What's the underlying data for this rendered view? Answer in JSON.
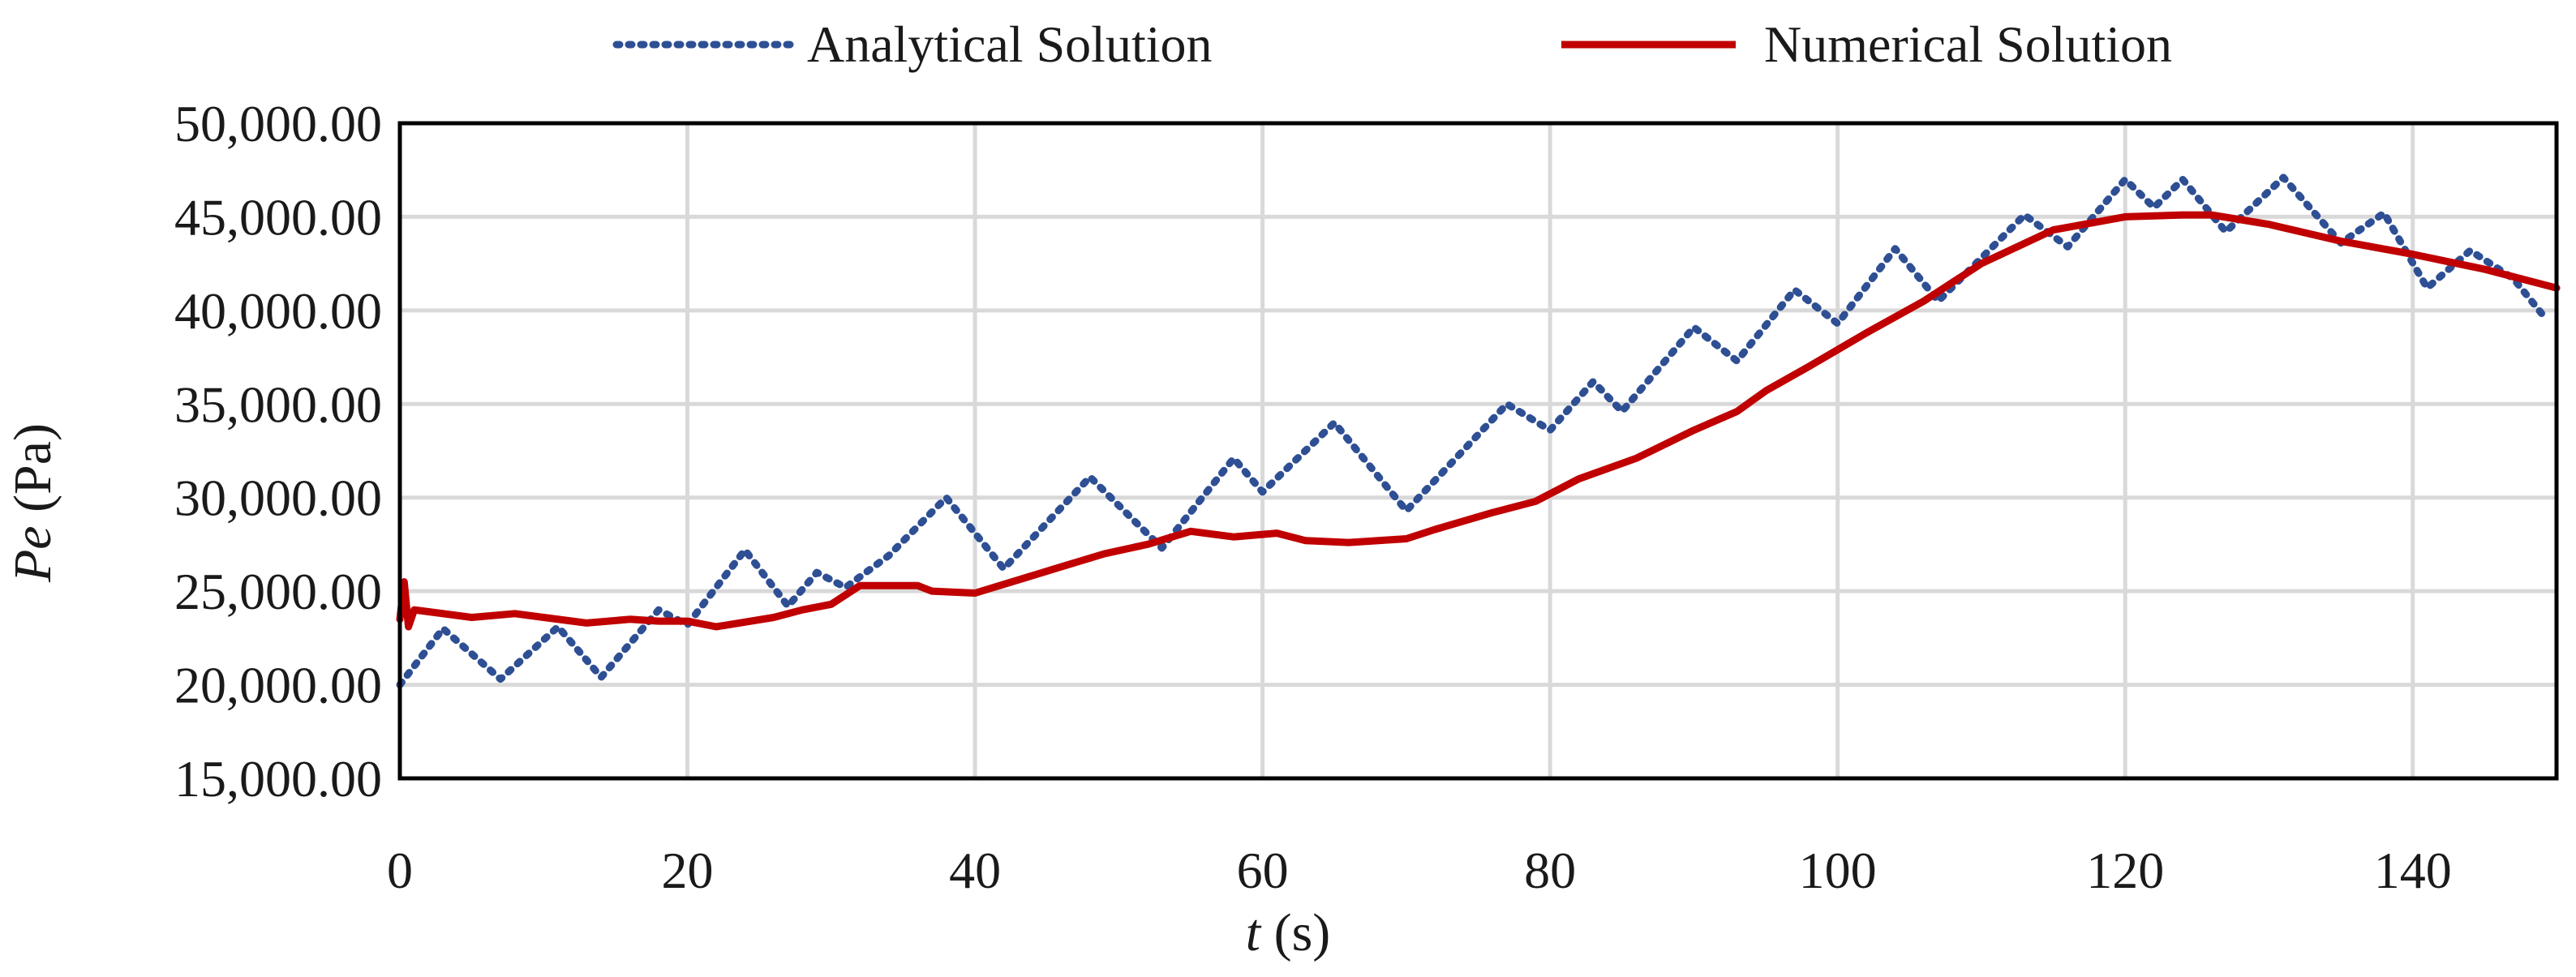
{
  "chart_data": {
    "type": "line",
    "xlabel_var": "t",
    "xlabel_unit": " (s)",
    "ylabel_var": "Pe",
    "ylabel_unit": " (Pa)",
    "xlim": [
      0,
      150
    ],
    "ylim": [
      15000,
      50000
    ],
    "x_ticks": [
      0,
      20,
      40,
      60,
      80,
      100,
      120,
      140
    ],
    "x_tick_labels": [
      "0",
      "20",
      "40",
      "60",
      "80",
      "100",
      "120",
      "140"
    ],
    "y_ticks": [
      15000,
      20000,
      25000,
      30000,
      35000,
      40000,
      45000,
      50000
    ],
    "y_tick_labels": [
      "15,000.00",
      "20,000.00",
      "25,000.00",
      "30,000.00",
      "35,000.00",
      "40,000.00",
      "45,000.00",
      "50,000.00"
    ],
    "grid": true,
    "legend_position": "top-center",
    "series": [
      {
        "name": "Analytical Solution",
        "color": "#2e4f94",
        "style": "dotted",
        "x": [
          0,
          3,
          7,
          11,
          14,
          18,
          20,
          24,
          27,
          29,
          31,
          34,
          38,
          42,
          48,
          53,
          58,
          60,
          65,
          70,
          77,
          80,
          83,
          85,
          90,
          93,
          97,
          100,
          104,
          107,
          113,
          116,
          120,
          122,
          124,
          127,
          131,
          135,
          138,
          141,
          144,
          147,
          149
        ],
        "y": [
          20000,
          23000,
          20300,
          23100,
          20400,
          24000,
          23200,
          27200,
          24200,
          26000,
          25200,
          26900,
          30000,
          26200,
          31100,
          27300,
          32100,
          30300,
          34000,
          29300,
          35000,
          33600,
          36200,
          34600,
          39100,
          37300,
          41100,
          39300,
          43300,
          40500,
          45100,
          43400,
          47000,
          45500,
          47000,
          44200,
          47100,
          43600,
          45200,
          41200,
          43200,
          41700,
          39800
        ]
      },
      {
        "name": "Numerical Solution",
        "color": "#c00000",
        "style": "solid",
        "x": [
          0,
          0.3,
          0.6,
          1,
          2,
          5,
          8,
          10,
          13,
          16,
          18,
          20,
          22,
          26,
          28,
          30,
          32,
          34,
          36,
          37,
          40,
          43,
          46,
          49,
          52,
          55,
          58,
          61,
          63,
          66,
          70,
          72,
          76,
          79,
          82,
          86,
          90,
          93,
          95,
          98,
          102,
          106,
          110,
          115,
          120,
          124,
          126,
          130,
          135,
          140,
          145,
          150
        ],
        "y": [
          23500,
          25500,
          23100,
          24000,
          23900,
          23600,
          23800,
          23600,
          23300,
          23500,
          23400,
          23400,
          23100,
          23600,
          24000,
          24300,
          25300,
          25300,
          25300,
          25000,
          24900,
          25600,
          26300,
          27000,
          27500,
          28200,
          27900,
          28100,
          27700,
          27600,
          27800,
          28300,
          29200,
          29800,
          31000,
          32100,
          33600,
          34600,
          35700,
          37000,
          38800,
          40500,
          42500,
          44300,
          45000,
          45100,
          45100,
          44600,
          43700,
          43000,
          42200,
          41200
        ]
      }
    ]
  }
}
